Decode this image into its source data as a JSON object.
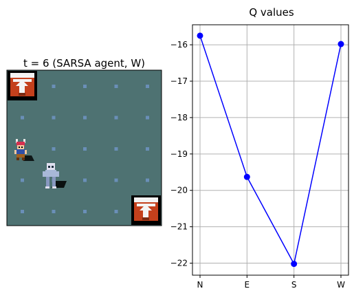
{
  "left_panel": {
    "title": "t = 6 (SARSA agent, W)"
  },
  "colors": {
    "floor": "#4e7272",
    "floor_dot": "#6a8fb8",
    "exit_frame": "#000000",
    "exit_red": "#c4401c",
    "exit_white": "#f4f4f4",
    "line": "#0000ff",
    "grid": "#b0b0b0"
  },
  "icons": {
    "exit_tile": "stairs-icon",
    "player": "player-icon",
    "enemy": "ghost-icon"
  },
  "chart_data": {
    "type": "line",
    "title": "Q values",
    "categories": [
      "N",
      "E",
      "S",
      "W"
    ],
    "values": [
      -15.75,
      -19.63,
      -22.02,
      -15.98
    ],
    "ylim": [
      -22.33,
      -15.45
    ],
    "yticks": [
      -16,
      -17,
      -18,
      -19,
      -20,
      -21,
      -22
    ],
    "ytick_labels": [
      "−16",
      "−17",
      "−18",
      "−19",
      "−20",
      "−21",
      "−22"
    ],
    "grid": true,
    "marker": "circle"
  }
}
